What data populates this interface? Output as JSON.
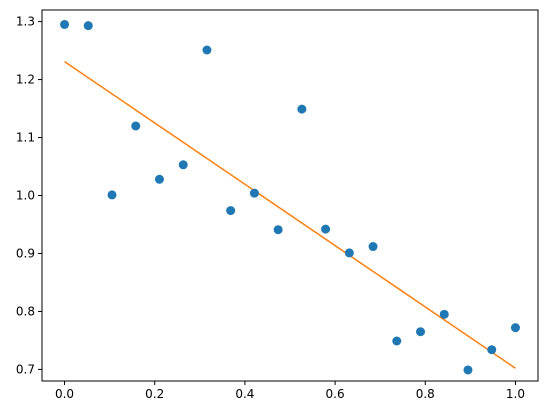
{
  "chart_data": {
    "type": "scatter",
    "title": "",
    "xlabel": "",
    "ylabel": "",
    "xlim": [
      -0.05,
      1.05
    ],
    "ylim": [
      0.68,
      1.32
    ],
    "grid": false,
    "legend": "none",
    "xticks": [
      0.0,
      0.2,
      0.4,
      0.6,
      0.8,
      1.0
    ],
    "xtick_labels": [
      "0.0",
      "0.2",
      "0.4",
      "0.6",
      "0.8",
      "1.0"
    ],
    "yticks": [
      0.7,
      0.8,
      0.9,
      1.0,
      1.1,
      1.2,
      1.3
    ],
    "ytick_labels": [
      "0.7",
      "0.8",
      "0.9",
      "1.0",
      "1.1",
      "1.2",
      "1.3"
    ],
    "series": [
      {
        "kind": "points",
        "color": "#1f77b4",
        "x": [
          0.0,
          0.0526,
          0.1053,
          0.1579,
          0.2105,
          0.2632,
          0.3158,
          0.3684,
          0.4211,
          0.4737,
          0.5263,
          0.5789,
          0.6316,
          0.6842,
          0.7368,
          0.7895,
          0.8421,
          0.8947,
          0.9474,
          1.0
        ],
        "y": [
          1.295,
          1.293,
          1.001,
          1.12,
          1.028,
          1.053,
          1.251,
          0.974,
          1.004,
          0.941,
          1.149,
          0.942,
          0.901,
          0.912,
          0.749,
          0.765,
          0.795,
          0.699,
          0.734,
          0.772
        ]
      },
      {
        "kind": "fit-line",
        "color": "#ff7f0e",
        "x": [
          0.0,
          1.0
        ],
        "y": [
          1.231,
          0.702
        ]
      }
    ]
  }
}
